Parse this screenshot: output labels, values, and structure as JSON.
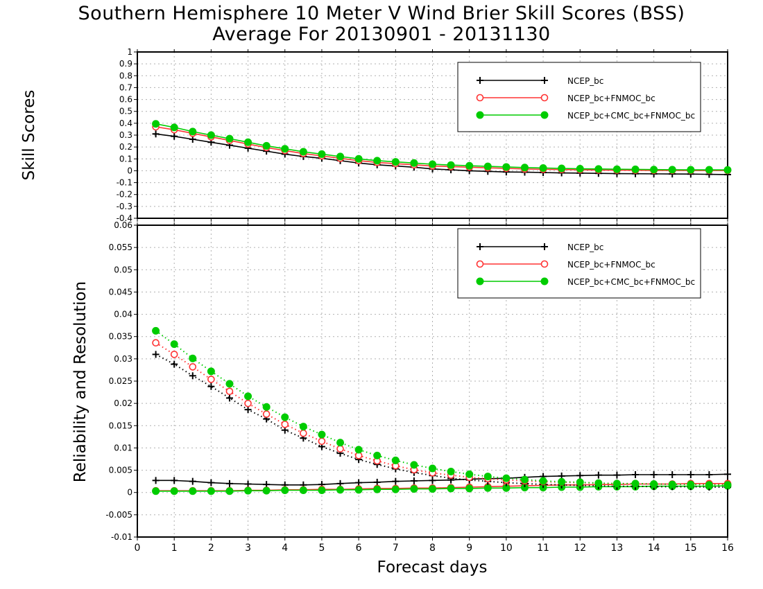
{
  "title": {
    "line1": "Southern Hemisphere 10 Meter V Wind Brier Skill Scores (BSS)",
    "line2": "Average For 20130901 - 20131130"
  },
  "colors": {
    "ncep": "#000000",
    "fnmoc": "#ff3333",
    "cmc": "#00cc00",
    "grid": "#b0b0b0"
  },
  "chart_data": [
    {
      "type": "line",
      "ylabel": "Skill Scores",
      "xlabel": "",
      "xlim": [
        0,
        16
      ],
      "ylim": [
        -0.4,
        1
      ],
      "x_ticks": [
        0,
        1,
        2,
        3,
        4,
        5,
        6,
        7,
        8,
        9,
        10,
        11,
        12,
        13,
        14,
        15,
        16
      ],
      "y_ticks": [
        "-0.4",
        "-0.3",
        "-0.2",
        "-0.1",
        "0",
        "0.1",
        "0.2",
        "0.3",
        "0.4",
        "0.5",
        "0.6",
        "0.7",
        "0.8",
        "0.9",
        "1"
      ],
      "grid": true,
      "legend_position": "top-right",
      "x": [
        0.5,
        1,
        1.5,
        2,
        2.5,
        3,
        3.5,
        4,
        4.5,
        5,
        5.5,
        6,
        6.5,
        7,
        7.5,
        8,
        8.5,
        9,
        9.5,
        10,
        10.5,
        11,
        11.5,
        12,
        12.5,
        13,
        13.5,
        14,
        14.5,
        15,
        15.5,
        16
      ],
      "series": [
        {
          "name": "NCEP_bc",
          "marker": "plus",
          "style": "solid",
          "values": [
            0.31,
            0.29,
            0.265,
            0.24,
            0.215,
            0.19,
            0.165,
            0.14,
            0.12,
            0.105,
            0.085,
            0.065,
            0.05,
            0.04,
            0.03,
            0.015,
            0.008,
            0.0,
            -0.005,
            -0.01,
            -0.012,
            -0.015,
            -0.018,
            -0.02,
            -0.022,
            -0.024,
            -0.025,
            -0.026,
            -0.027,
            -0.028,
            -0.03,
            -0.032
          ]
        },
        {
          "name": "NCEP_bc+FNMOC_bc",
          "marker": "open-circle",
          "style": "solid",
          "values": [
            0.37,
            0.345,
            0.315,
            0.285,
            0.255,
            0.225,
            0.195,
            0.17,
            0.145,
            0.125,
            0.105,
            0.085,
            0.07,
            0.06,
            0.05,
            0.04,
            0.035,
            0.03,
            0.025,
            0.02,
            0.015,
            0.012,
            0.01,
            0.008,
            0.006,
            0.005,
            0.004,
            0.003,
            0.003,
            0.002,
            0.002,
            0.002
          ]
        },
        {
          "name": "NCEP_bc+CMC_bc+FNMOC_bc",
          "marker": "filled-circle",
          "style": "solid",
          "values": [
            0.395,
            0.365,
            0.33,
            0.3,
            0.27,
            0.24,
            0.21,
            0.185,
            0.16,
            0.14,
            0.12,
            0.1,
            0.085,
            0.075,
            0.065,
            0.055,
            0.048,
            0.042,
            0.037,
            0.032,
            0.027,
            0.023,
            0.02,
            0.017,
            0.015,
            0.013,
            0.012,
            0.01,
            0.009,
            0.008,
            0.008,
            0.007
          ]
        }
      ]
    },
    {
      "type": "line",
      "ylabel": "Reliability and Resolution",
      "xlabel": "Forecast days",
      "xlim": [
        0,
        16
      ],
      "ylim": [
        -0.01,
        0.06
      ],
      "x_ticks": [
        0,
        1,
        2,
        3,
        4,
        5,
        6,
        7,
        8,
        9,
        10,
        11,
        12,
        13,
        14,
        15,
        16
      ],
      "y_ticks": [
        "-0.01",
        "-0.005",
        "0",
        "0.005",
        "0.01",
        "0.015",
        "0.02",
        "0.025",
        "0.03",
        "0.035",
        "0.04",
        "0.045",
        "0.05",
        "0.055",
        "0.06"
      ],
      "grid": true,
      "legend_position": "top-right",
      "x": [
        0.5,
        1,
        1.5,
        2,
        2.5,
        3,
        3.5,
        4,
        4.5,
        5,
        5.5,
        6,
        6.5,
        7,
        7.5,
        8,
        8.5,
        9,
        9.5,
        10,
        10.5,
        11,
        11.5,
        12,
        12.5,
        13,
        13.5,
        14,
        14.5,
        15,
        15.5,
        16
      ],
      "series": [
        {
          "name": "NCEP_bc",
          "marker": "plus",
          "style": "solid",
          "values": [
            0.0027,
            0.0027,
            0.0025,
            0.0022,
            0.002,
            0.0019,
            0.0018,
            0.0017,
            0.0017,
            0.0018,
            0.002,
            0.0022,
            0.0023,
            0.0025,
            0.0026,
            0.0027,
            0.0028,
            0.003,
            0.0031,
            0.0032,
            0.0034,
            0.0036,
            0.0037,
            0.0038,
            0.0039,
            0.0039,
            0.004,
            0.004,
            0.004,
            0.004,
            0.004,
            0.0041
          ]
        },
        {
          "name": "NCEP_bc+FNMOC_bc",
          "marker": "open-circle",
          "style": "solid",
          "values": [
            0.0004,
            0.0004,
            0.0004,
            0.0004,
            0.0004,
            0.0005,
            0.0005,
            0.0006,
            0.0006,
            0.0007,
            0.0007,
            0.0008,
            0.0009,
            0.0009,
            0.001,
            0.001,
            0.0011,
            0.0012,
            0.0013,
            0.0014,
            0.0015,
            0.0016,
            0.0017,
            0.0017,
            0.0018,
            0.0018,
            0.0019,
            0.0019,
            0.0019,
            0.002,
            0.002,
            0.002
          ]
        },
        {
          "name": "NCEP_bc+CMC_bc+FNMOC_bc",
          "marker": "filled-circle",
          "style": "solid",
          "values": [
            0.0003,
            0.0003,
            0.0003,
            0.0003,
            0.0003,
            0.0004,
            0.0004,
            0.0005,
            0.0005,
            0.0005,
            0.0006,
            0.0006,
            0.0007,
            0.0007,
            0.0008,
            0.0008,
            0.0009,
            0.0009,
            0.001,
            0.001,
            0.0011,
            0.0011,
            0.0012,
            0.0012,
            0.0013,
            0.0013,
            0.0013,
            0.0014,
            0.0014,
            0.0014,
            0.0014,
            0.0015
          ]
        },
        {
          "name": "",
          "marker": "plus",
          "style": "dotted",
          "legend": false,
          "values": [
            0.031,
            0.0288,
            0.0262,
            0.0238,
            0.0212,
            0.0186,
            0.0165,
            0.014,
            0.0122,
            0.0103,
            0.0088,
            0.0074,
            0.0063,
            0.0053,
            0.0045,
            0.0038,
            0.0032,
            0.0028,
            0.0025,
            0.0022,
            0.002,
            0.0018,
            0.0017,
            0.0016,
            0.0015,
            0.0014,
            0.0014,
            0.0013,
            0.0013,
            0.0013,
            0.0012,
            0.0012
          ]
        },
        {
          "name": "",
          "marker": "open-circle",
          "style": "dotted",
          "legend": false,
          "values": [
            0.0336,
            0.031,
            0.0282,
            0.0254,
            0.0227,
            0.02,
            0.0176,
            0.0153,
            0.0133,
            0.0115,
            0.0098,
            0.0083,
            0.0071,
            0.006,
            0.0051,
            0.0044,
            0.0039,
            0.0034,
            0.0031,
            0.0028,
            0.0026,
            0.0024,
            0.0023,
            0.0022,
            0.0021,
            0.002,
            0.002,
            0.0019,
            0.0019,
            0.0019,
            0.0018,
            0.0018
          ]
        },
        {
          "name": "",
          "marker": "filled-circle",
          "style": "dotted",
          "legend": false,
          "values": [
            0.0363,
            0.0333,
            0.0301,
            0.0272,
            0.0244,
            0.0216,
            0.0192,
            0.0169,
            0.0148,
            0.013,
            0.0112,
            0.0096,
            0.0083,
            0.0072,
            0.0062,
            0.0054,
            0.0047,
            0.0041,
            0.0036,
            0.0032,
            0.0029,
            0.0026,
            0.0024,
            0.0023,
            0.0021,
            0.002,
            0.002,
            0.0019,
            0.0018,
            0.0018,
            0.0017,
            0.0017
          ]
        }
      ]
    }
  ]
}
